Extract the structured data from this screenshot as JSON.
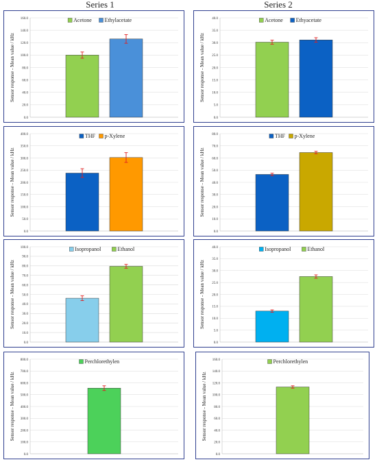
{
  "headers": {
    "series1": "Series 1",
    "series2": "Series 2"
  },
  "chart_data": [
    {
      "id": "s1-r1",
      "type": "bar",
      "ylabel": "Sensor response - Mean value / kHz",
      "ylim": [
        0,
        160
      ],
      "ystep": 20,
      "series": [
        {
          "name": "Acetone",
          "value": 100,
          "error": 5,
          "color": "#92d050"
        },
        {
          "name": "Ethylacetate",
          "value": 126,
          "error": 7,
          "color": "#4a90d9"
        }
      ]
    },
    {
      "id": "s2-r1",
      "type": "bar",
      "ylabel": "Sensor response - Mean value / kHz",
      "ylim": [
        0,
        40
      ],
      "ystep": 5,
      "series": [
        {
          "name": "Acetone",
          "value": 30.2,
          "error": 0.8,
          "color": "#92d050"
        },
        {
          "name": "Ethyacetate",
          "value": 31.1,
          "error": 0.9,
          "color": "#0b61c4"
        }
      ]
    },
    {
      "id": "s1-r2",
      "type": "bar",
      "ylabel": "Sensor  response - Mean value / kHz",
      "ylim": [
        0,
        400
      ],
      "ystep": 50,
      "series": [
        {
          "name": "THF",
          "value": 238,
          "error": 18,
          "color": "#0b61c4"
        },
        {
          "name": "p-Xylene",
          "value": 302,
          "error": 20,
          "color": "#ff9900"
        }
      ]
    },
    {
      "id": "s2-r2",
      "type": "bar",
      "ylabel": "Sensor  response - Mean value / kHz",
      "ylim": [
        0,
        80
      ],
      "ystep": 10,
      "series": [
        {
          "name": "THF",
          "value": 46.5,
          "error": 1,
          "color": "#0b61c4"
        },
        {
          "name": "p-Xylene",
          "value": 64.5,
          "error": 1,
          "color": "#c9a800"
        }
      ]
    },
    {
      "id": "s1-r3",
      "type": "bar",
      "ylabel": "Sensor  response - Mean value / kHz",
      "ylim": [
        0,
        100
      ],
      "ystep": 10,
      "series": [
        {
          "name": "Isopropanol",
          "value": 46,
          "error": 2.5,
          "color": "#87ceeb"
        },
        {
          "name": "Ethanol",
          "value": 79.5,
          "error": 2,
          "color": "#92d050"
        }
      ]
    },
    {
      "id": "s2-r3",
      "type": "bar",
      "ylabel": "Sensor response - Mean value / kHz",
      "ylim": [
        0,
        40
      ],
      "ystep": 5,
      "series": [
        {
          "name": "Isopropanol",
          "value": 13,
          "error": 0.5,
          "color": "#00b0f0"
        },
        {
          "name": "Ethanol",
          "value": 27.5,
          "error": 0.7,
          "color": "#92d050"
        }
      ]
    },
    {
      "id": "s1-r4",
      "type": "bar",
      "ylabel": "Sensor response - Mean value / kHz",
      "ylim": [
        0,
        800
      ],
      "ystep": 100,
      "series": [
        {
          "name": "Perchlorethylen",
          "value": 555,
          "error": 20,
          "color": "#4cd15a"
        }
      ]
    },
    {
      "id": "s2-r4",
      "type": "bar",
      "ylabel": "Sensor response - Mean value / kHz",
      "ylim": [
        0,
        160
      ],
      "ystep": 20,
      "series": [
        {
          "name": "Perchlorethylen",
          "value": 113,
          "error": 2,
          "color": "#92d050"
        }
      ]
    }
  ]
}
